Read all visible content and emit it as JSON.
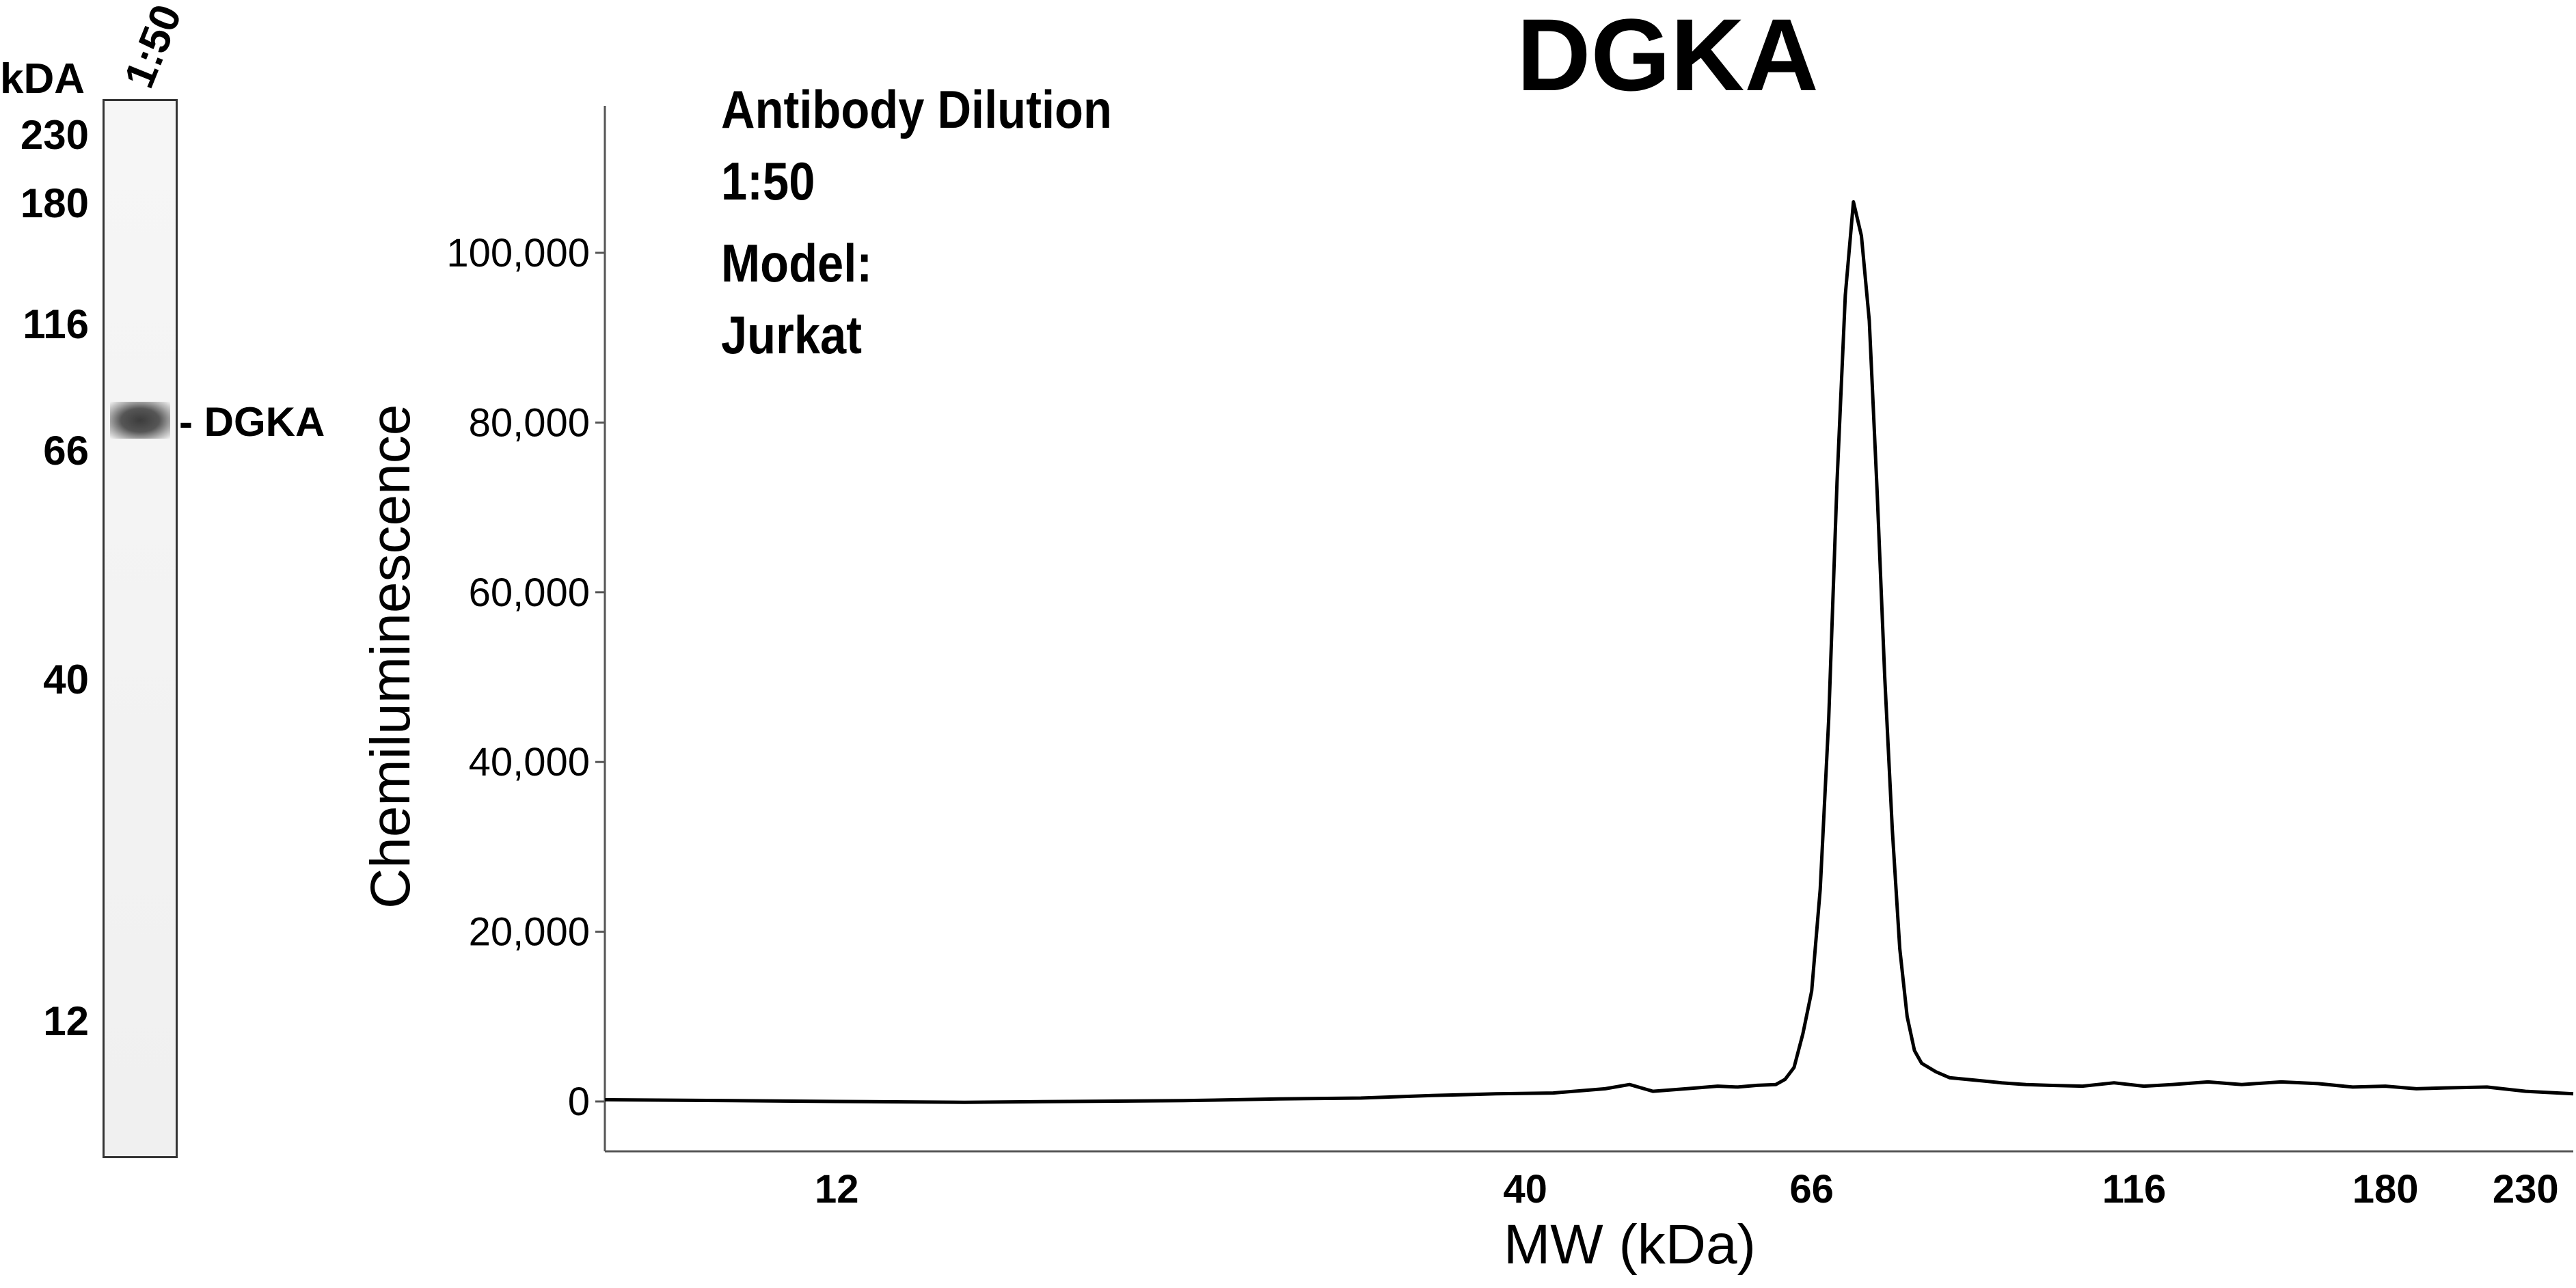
{
  "blot": {
    "unit_header": "kDA",
    "lane_label": "1:50",
    "markers": [
      {
        "label": "230",
        "kda": 230
      },
      {
        "label": "180",
        "kda": 180
      },
      {
        "label": "116",
        "kda": 116
      },
      {
        "label": "66",
        "kda": 66
      },
      {
        "label": "40",
        "kda": 40
      },
      {
        "label": "12",
        "kda": 12
      }
    ],
    "band_label": "- DGKA"
  },
  "annotations": {
    "line1": "Antibody Dilution",
    "line2": "1:50",
    "line3": "Model:",
    "line4": "Jurkat"
  },
  "chart_data": {
    "type": "line",
    "title": "DGKA",
    "xlabel": "MW (kDa)",
    "ylabel": "Chemiluminescence",
    "x_scale": "log",
    "xlim": [
      8,
      250
    ],
    "ylim": [
      -5000,
      115000
    ],
    "x_ticks": [
      {
        "label": "12",
        "value": 12
      },
      {
        "label": "40",
        "value": 40
      },
      {
        "label": "66",
        "value": 66
      },
      {
        "label": "116",
        "value": 116
      },
      {
        "label": "180",
        "value": 180
      },
      {
        "label": "230",
        "value": 230
      }
    ],
    "y_ticks": [
      {
        "label": "0",
        "value": 0
      },
      {
        "label": "20,000",
        "value": 20000
      },
      {
        "label": "40,000",
        "value": 40000
      },
      {
        "label": "60,000",
        "value": 60000
      },
      {
        "label": "80,000",
        "value": 80000
      },
      {
        "label": "100,000",
        "value": 100000
      }
    ],
    "grid": false,
    "series": [
      {
        "x": [
          8,
          10,
          12,
          15,
          18,
          22,
          26,
          30,
          34,
          38,
          42,
          46,
          48,
          50,
          53,
          56,
          58,
          60,
          62,
          63,
          64,
          65,
          66,
          67,
          68,
          69,
          70,
          71,
          72,
          73,
          74,
          75,
          76,
          77,
          78,
          79,
          80,
          82,
          84,
          88,
          92,
          96,
          100,
          106,
          112,
          118,
          124,
          132,
          140,
          150,
          160,
          170,
          180,
          190,
          200,
          215,
          230,
          250
        ],
        "y": [
          200,
          100,
          0,
          -100,
          0,
          100,
          300,
          400,
          700,
          900,
          1000,
          1500,
          2000,
          1200,
          1500,
          1800,
          1700,
          1900,
          2000,
          2600,
          4000,
          8000,
          13000,
          25000,
          45000,
          73000,
          95000,
          106000,
          102000,
          92000,
          72000,
          50000,
          32000,
          18000,
          10000,
          6000,
          4500,
          3500,
          2800,
          2500,
          2200,
          2000,
          1900,
          1800,
          2200,
          1800,
          2000,
          2300,
          2000,
          2300,
          2100,
          1700,
          1800,
          1500,
          1600,
          1700,
          1200,
          900
        ]
      }
    ]
  }
}
